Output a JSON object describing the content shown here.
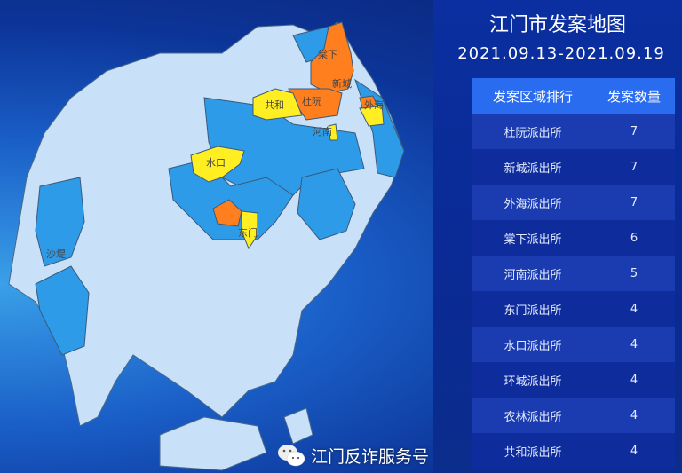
{
  "header": {
    "title": "江门市发案地图",
    "date_range": "2021.09.13-2021.09.19"
  },
  "table": {
    "columns": [
      "发案区域排行",
      "发案数量"
    ],
    "rows": [
      {
        "name": "杜阮派出所",
        "count": "7"
      },
      {
        "name": "新城派出所",
        "count": "7"
      },
      {
        "name": "外海派出所",
        "count": "7"
      },
      {
        "name": "棠下派出所",
        "count": "6"
      },
      {
        "name": "河南派出所",
        "count": "5"
      },
      {
        "name": "东门派出所",
        "count": "4"
      },
      {
        "name": "水口派出所",
        "count": "4"
      },
      {
        "name": "环城派出所",
        "count": "4"
      },
      {
        "name": "农林派出所",
        "count": "4"
      },
      {
        "name": "共和派出所",
        "count": "4"
      }
    ]
  },
  "map": {
    "labels": [
      "棠下",
      "共和",
      "杜阮",
      "新城",
      "外海",
      "河南",
      "水口",
      "东门",
      "沙堤"
    ],
    "colors": {
      "high": "#ff7f1e",
      "mid": "#ffee22",
      "low": "#2e9be8",
      "none": "#c8e0f8",
      "border": "#4a6a8a"
    }
  },
  "watermark": {
    "text": "江门反诈服务号",
    "icon": "wechat-icon"
  }
}
